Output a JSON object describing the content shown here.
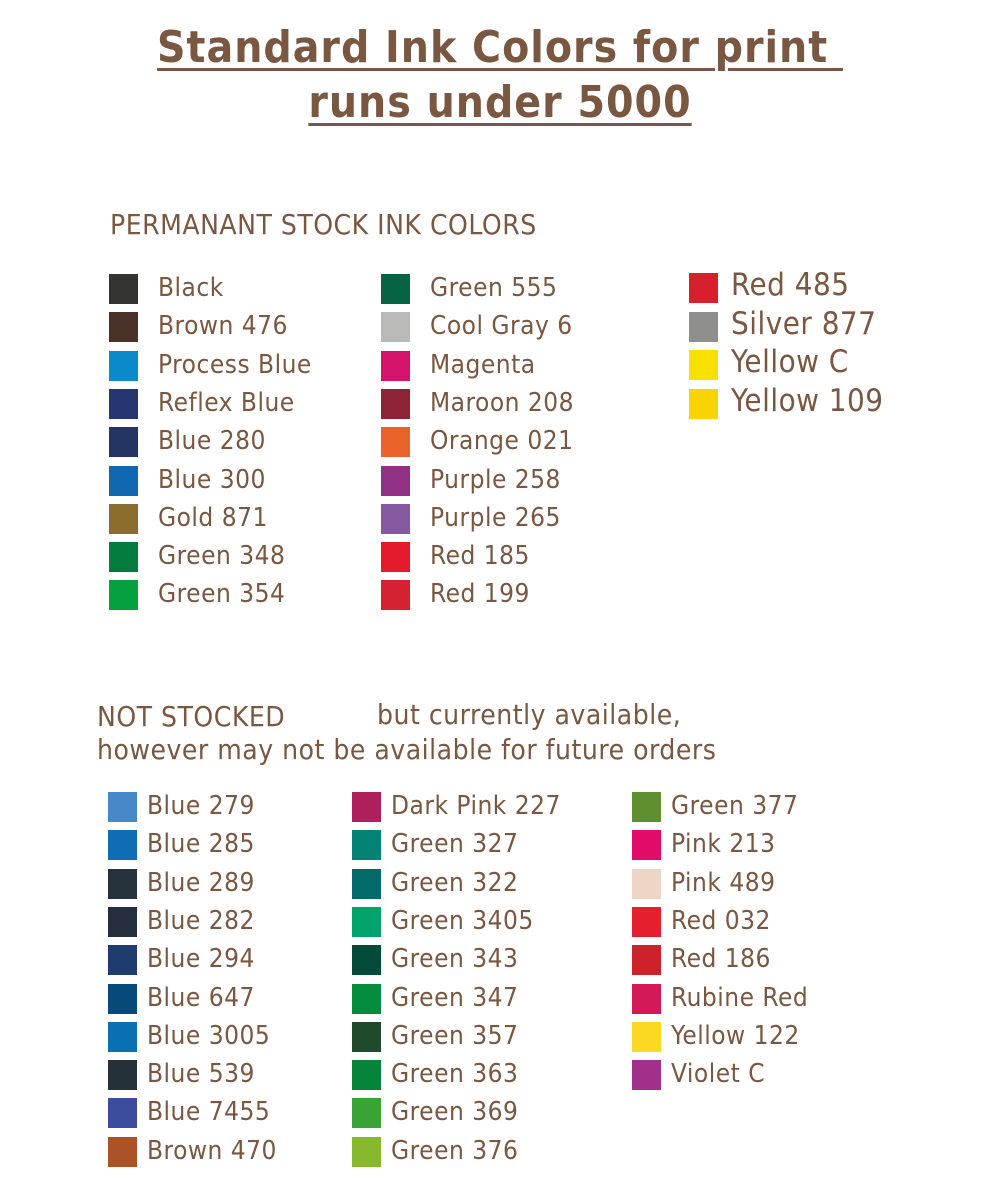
{
  "title": {
    "line1": "Standard Ink Colors for print ",
    "line2": "runs under 5000"
  },
  "colors": {
    "text": "#7a5741"
  },
  "permanent": {
    "heading": "PERMANANT STOCK INK COLORS",
    "columns": [
      [
        {
          "label": "Black",
          "color": "#333331"
        },
        {
          "label": "Brown 476",
          "color": "#4a3228"
        },
        {
          "label": "Process Blue",
          "color": "#0a8acb"
        },
        {
          "label": "Reflex Blue",
          "color": "#263673"
        },
        {
          "label": "Blue 280",
          "color": "#253563"
        },
        {
          "label": "Blue 300",
          "color": "#0f68b0"
        },
        {
          "label": "Gold 871",
          "color": "#8a6d2c"
        },
        {
          "label": "Green 348",
          "color": "#037a3e"
        },
        {
          "label": "Green 354",
          "color": "#06a03e"
        }
      ],
      [
        {
          "label": "Green 555",
          "color": "#066444"
        },
        {
          "label": "Cool Gray 6",
          "color": "#b9b9b7"
        },
        {
          "label": "Magenta",
          "color": "#d4136a"
        },
        {
          "label": "Maroon 208",
          "color": "#8e2338"
        },
        {
          "label": "Orange 021",
          "color": "#e8622a"
        },
        {
          "label": "Purple 258",
          "color": "#923086"
        },
        {
          "label": "Purple 265",
          "color": "#8559a0"
        },
        {
          "label": "Red 185",
          "color": "#e41b2d"
        },
        {
          "label": "Red 199",
          "color": "#d52233"
        }
      ],
      [
        {
          "label": "Red 485",
          "color": "#d81f2c"
        },
        {
          "label": "Silver 877",
          "color": "#8f908c"
        },
        {
          "label": "Yellow C",
          "color": "#f8e100"
        },
        {
          "label": "Yellow 109",
          "color": "#fad400"
        }
      ]
    ]
  },
  "not_stocked": {
    "heading_bold": "NOT STOCKED",
    "heading_rest": "but currently available,",
    "heading_line2": "however may not be available for future orders",
    "columns": [
      [
        {
          "label": "Blue 279",
          "color": "#4688c8"
        },
        {
          "label": "Blue 285",
          "color": "#0f6db5"
        },
        {
          "label": "Blue 289",
          "color": "#26333d"
        },
        {
          "label": "Blue 282",
          "color": "#252e3c"
        },
        {
          "label": "Blue 294",
          "color": "#1e3c6d"
        },
        {
          "label": "Blue 647",
          "color": "#054a78"
        },
        {
          "label": "Blue 3005",
          "color": "#0a6fb3"
        },
        {
          "label": "Blue 539",
          "color": "#243139"
        },
        {
          "label": "Blue 7455",
          "color": "#3b4d9c"
        },
        {
          "label": "Brown 470",
          "color": "#ab5227"
        }
      ],
      [
        {
          "label": "Dark Pink 227",
          "color": "#ae1f5b"
        },
        {
          "label": "Green 327",
          "color": "#048273"
        },
        {
          "label": "Green 322",
          "color": "#036a6a"
        },
        {
          "label": "Green 3405",
          "color": "#02a46b"
        },
        {
          "label": "Green 343",
          "color": "#044a39"
        },
        {
          "label": "Green 347",
          "color": "#038c3c"
        },
        {
          "label": "Green 357",
          "color": "#1f4a2b"
        },
        {
          "label": "Green 363",
          "color": "#05843a"
        },
        {
          "label": "Green 369",
          "color": "#3aa336"
        },
        {
          "label": "Green 376",
          "color": "#86b92b"
        }
      ],
      [
        {
          "label": "Green 377",
          "color": "#5f8f2e"
        },
        {
          "label": "Pink 213",
          "color": "#e30b6a"
        },
        {
          "label": "Pink 489",
          "color": "#eed5c6"
        },
        {
          "label": "Red 032",
          "color": "#e51f2d"
        },
        {
          "label": "Red 186",
          "color": "#cd212c"
        },
        {
          "label": "Rubine Red",
          "color": "#d31958"
        },
        {
          "label": "Yellow 122",
          "color": "#fad824"
        },
        {
          "label": "Violet C",
          "color": "#a1308a"
        }
      ]
    ]
  }
}
